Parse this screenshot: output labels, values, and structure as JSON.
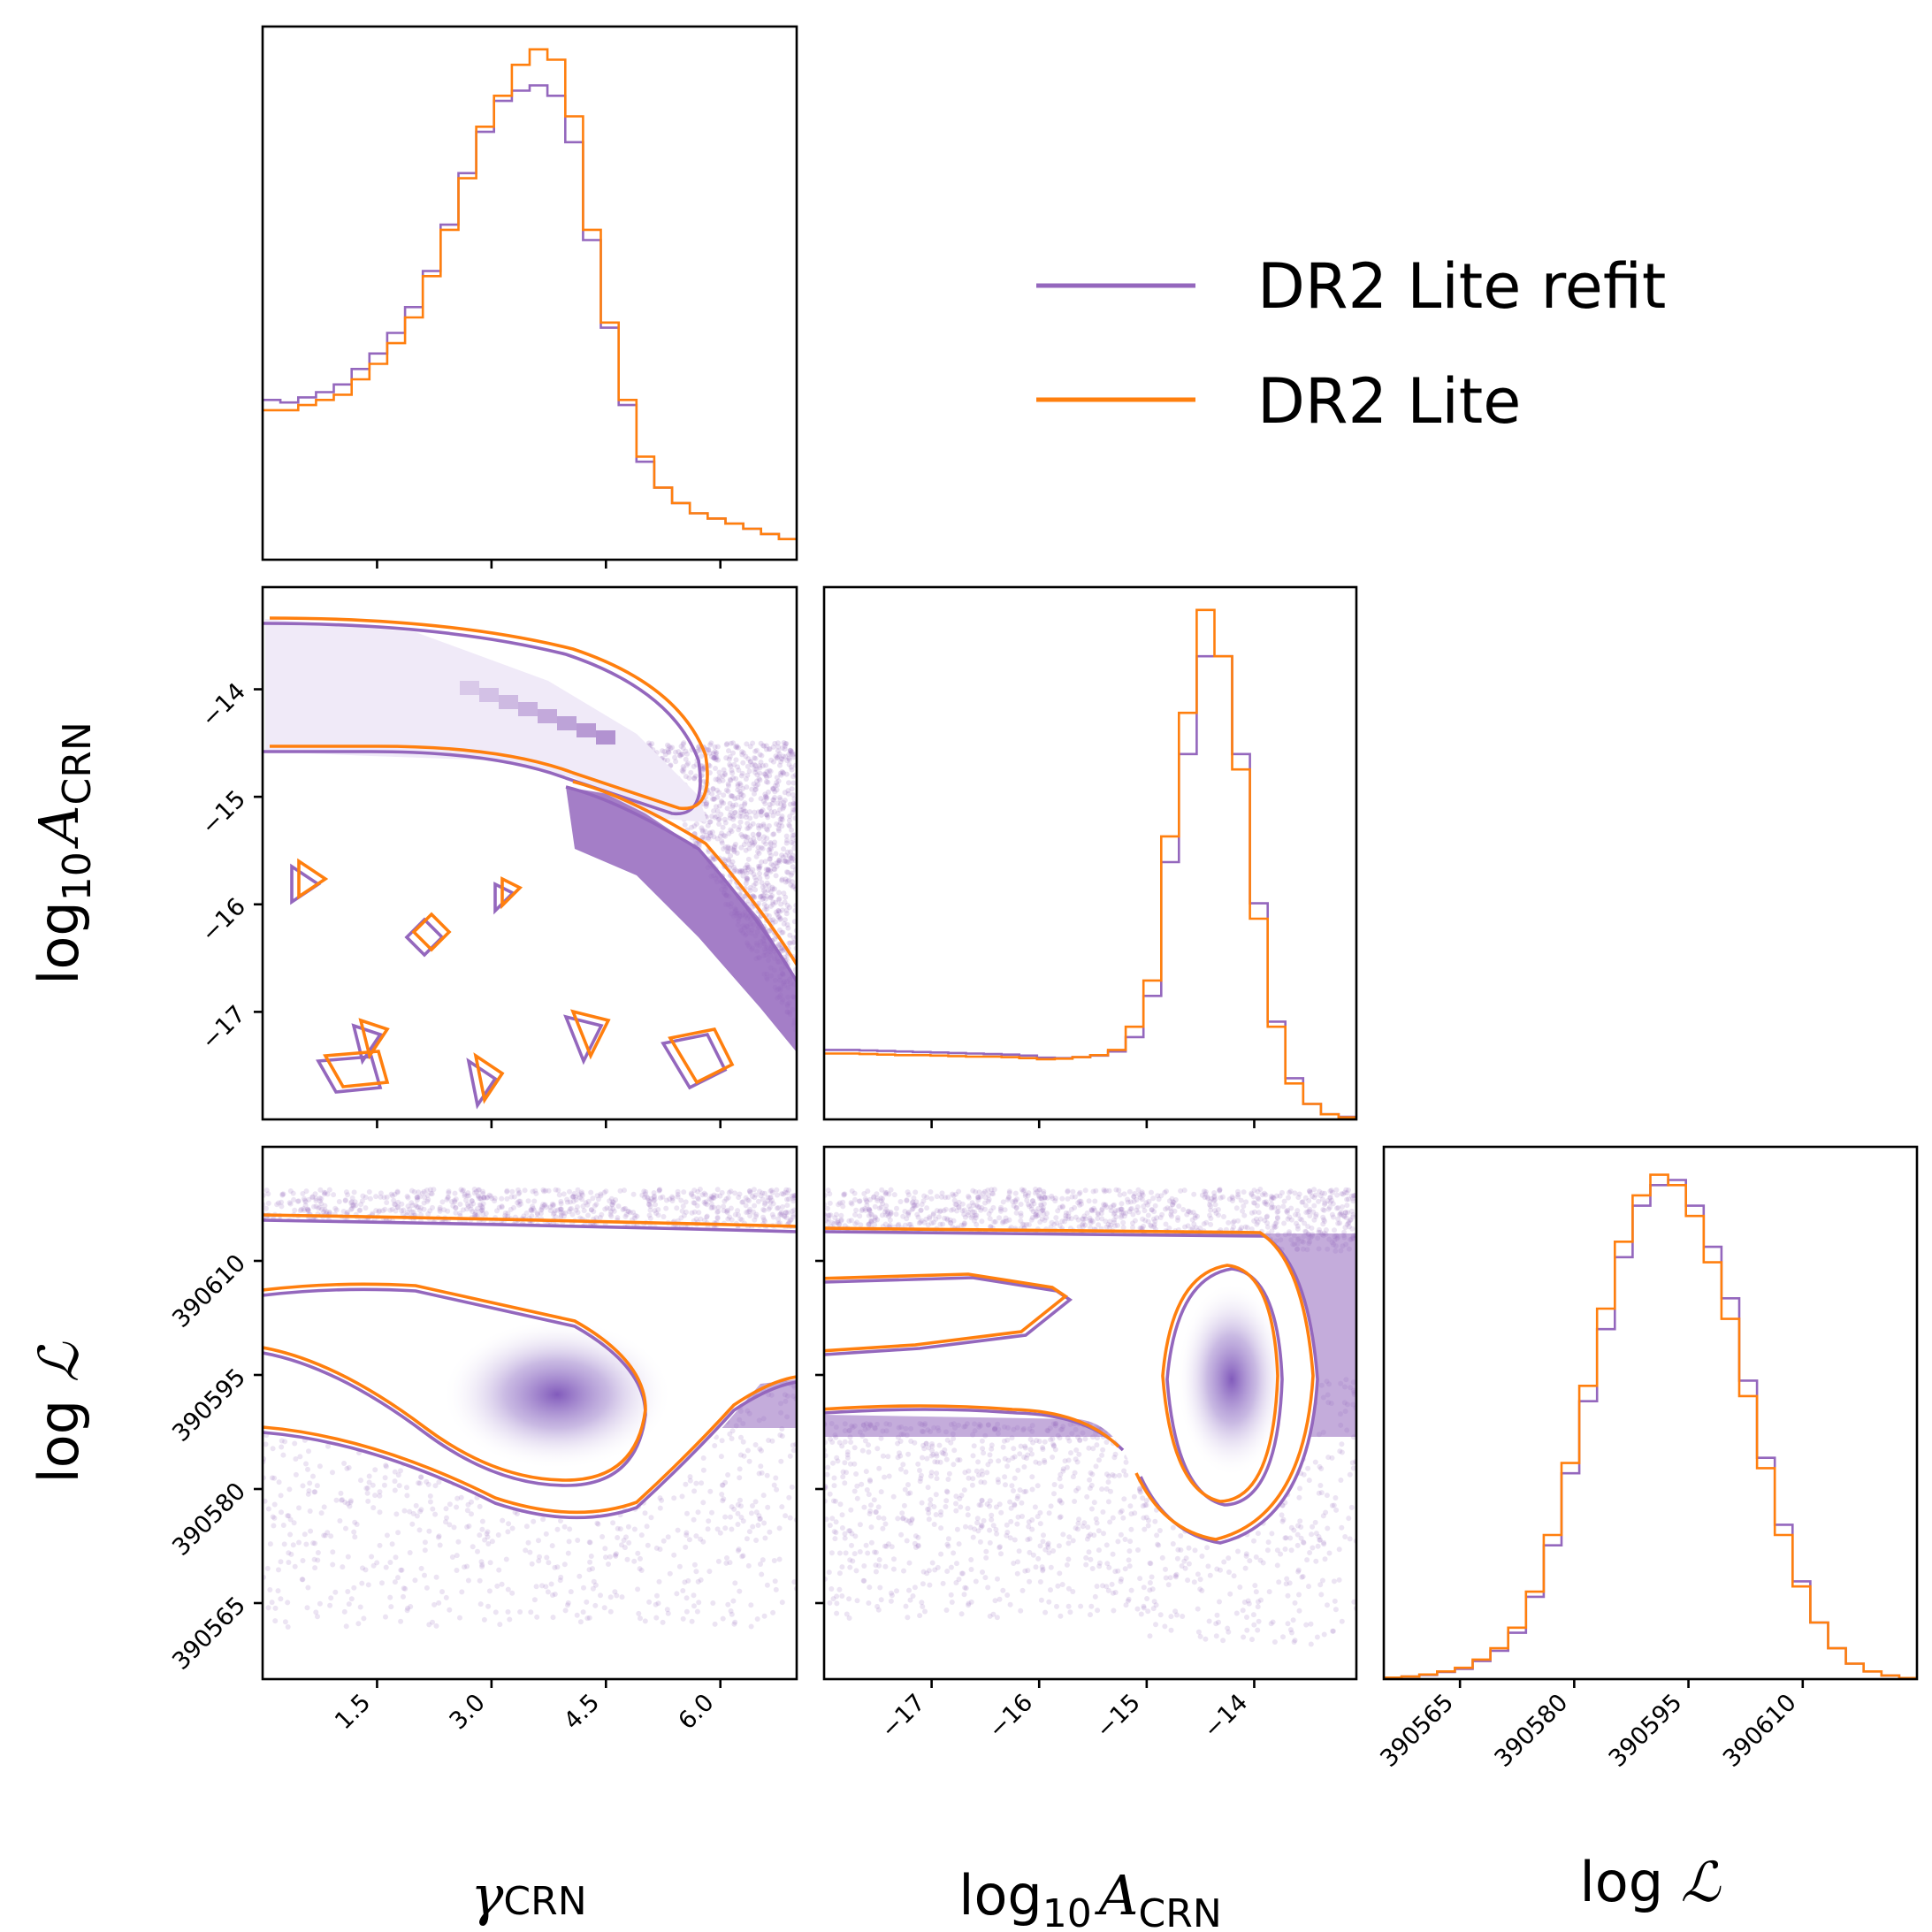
{
  "chart_data": {
    "type": "corner",
    "parameters": [
      {
        "key": "gamma",
        "label": "γ",
        "label_sub": "CRN",
        "range": [
          0.0,
          7.0
        ],
        "ticks": [
          "1.5",
          "3.0",
          "4.5",
          "6.0"
        ]
      },
      {
        "key": "log10A",
        "label": "log",
        "label_sub1": "10",
        "label_main": "A",
        "label_sub": "CRN",
        "range": [
          -18.0,
          -13.05
        ],
        "ticks": [
          "−17",
          "−16",
          "−15",
          "−14"
        ]
      },
      {
        "key": "logL",
        "label": "log ",
        "label_main": "ℒ",
        "range": [
          390555,
          390625
        ],
        "ticks": [
          "390565",
          "390580",
          "390595",
          "390610"
        ]
      }
    ],
    "series": [
      {
        "name": "DR2 Lite refit",
        "color": "#9467bd"
      },
      {
        "name": "DR2 Lite",
        "color": "#ff7f0e"
      }
    ],
    "legend_position": "upper-right",
    "histograms": {
      "gamma": {
        "edges": [
          0.0,
          0.233,
          0.467,
          0.7,
          0.933,
          1.167,
          1.4,
          1.633,
          1.867,
          2.1,
          2.333,
          2.567,
          2.8,
          3.033,
          3.267,
          3.5,
          3.733,
          3.967,
          4.2,
          4.433,
          4.667,
          4.9,
          5.133,
          5.367,
          5.6,
          5.833,
          6.067,
          6.3,
          6.533,
          6.767,
          7.0
        ],
        "DR2 Lite refit": [
          0.31,
          0.305,
          0.315,
          0.325,
          0.34,
          0.37,
          0.4,
          0.44,
          0.49,
          0.56,
          0.65,
          0.75,
          0.83,
          0.89,
          0.91,
          0.92,
          0.9,
          0.81,
          0.62,
          0.45,
          0.3,
          0.19,
          0.14,
          0.11,
          0.09,
          0.08,
          0.07,
          0.06,
          0.05,
          0.04
        ],
        "DR2 Lite": [
          0.29,
          0.29,
          0.3,
          0.31,
          0.32,
          0.35,
          0.38,
          0.42,
          0.47,
          0.55,
          0.64,
          0.74,
          0.84,
          0.9,
          0.96,
          0.99,
          0.97,
          0.86,
          0.64,
          0.46,
          0.31,
          0.2,
          0.14,
          0.11,
          0.09,
          0.08,
          0.07,
          0.06,
          0.05,
          0.04
        ]
      },
      "log10A": {
        "edges": [
          -18.0,
          -17.835,
          -17.67,
          -17.505,
          -17.34,
          -17.175,
          -17.01,
          -16.845,
          -16.68,
          -16.515,
          -16.35,
          -16.185,
          -16.02,
          -15.855,
          -15.69,
          -15.525,
          -15.36,
          -15.195,
          -15.03,
          -14.865,
          -14.7,
          -14.535,
          -14.37,
          -14.205,
          -14.04,
          -13.875,
          -13.71,
          -13.545,
          -13.38,
          -13.215,
          -13.05
        ],
        "DR2 Lite refit": [
          0.135,
          0.135,
          0.134,
          0.133,
          0.132,
          0.131,
          0.13,
          0.129,
          0.128,
          0.127,
          0.126,
          0.124,
          0.12,
          0.119,
          0.121,
          0.124,
          0.132,
          0.16,
          0.24,
          0.5,
          0.71,
          0.9,
          0.9,
          0.71,
          0.42,
          0.19,
          0.08,
          0.03,
          0.01,
          0.005
        ],
        "DR2 Lite": [
          0.128,
          0.128,
          0.127,
          0.126,
          0.125,
          0.125,
          0.124,
          0.123,
          0.122,
          0.122,
          0.121,
          0.119,
          0.117,
          0.118,
          0.121,
          0.125,
          0.135,
          0.18,
          0.27,
          0.55,
          0.79,
          0.99,
          0.9,
          0.68,
          0.39,
          0.18,
          0.07,
          0.03,
          0.01,
          0.004
        ]
      },
      "logL": {
        "edges": [
          390555,
          390557.33,
          390559.67,
          390562,
          390564.33,
          390566.67,
          390569,
          390571.33,
          390573.67,
          390576,
          390578.33,
          390580.67,
          390583,
          390585.33,
          390587.67,
          390590,
          390592.33,
          390594.67,
          390597,
          390599.33,
          390601.67,
          390604,
          390606.33,
          390608.67,
          390611,
          390613.33,
          390615.67,
          390618,
          390620.33,
          390622.67,
          390625
        ],
        "DR2 Lite refit": [
          0.003,
          0.005,
          0.008,
          0.014,
          0.02,
          0.035,
          0.055,
          0.09,
          0.16,
          0.26,
          0.4,
          0.54,
          0.68,
          0.82,
          0.92,
          0.96,
          0.97,
          0.92,
          0.84,
          0.74,
          0.58,
          0.43,
          0.3,
          0.19,
          0.11,
          0.06,
          0.03,
          0.015,
          0.007,
          0.002
        ],
        "DR2 Lite": [
          0.003,
          0.005,
          0.009,
          0.015,
          0.022,
          0.038,
          0.06,
          0.1,
          0.17,
          0.28,
          0.42,
          0.57,
          0.72,
          0.85,
          0.94,
          0.98,
          0.96,
          0.9,
          0.81,
          0.7,
          0.55,
          0.41,
          0.28,
          0.18,
          0.11,
          0.06,
          0.03,
          0.015,
          0.007,
          0.002
        ]
      }
    }
  }
}
